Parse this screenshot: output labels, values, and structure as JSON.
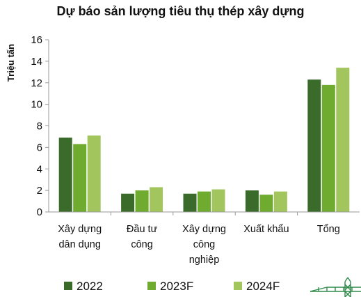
{
  "chart_data": {
    "type": "bar",
    "title": "Dự báo sản lượng tiêu thụ thép xây dựng",
    "ylabel": "Triệu tấn",
    "xlabel": "",
    "ylim": [
      0,
      16
    ],
    "yticks": [
      0,
      2,
      4,
      6,
      8,
      10,
      12,
      14,
      16
    ],
    "grid": false,
    "legend_position": "bottom",
    "categories": [
      [
        "Xây dựng",
        "dân dụng"
      ],
      [
        "Đầu tư",
        "công"
      ],
      [
        "Xây dựng",
        "công",
        "nghiệp"
      ],
      [
        "Xuất khẩu"
      ],
      [
        "Tổng"
      ]
    ],
    "series": [
      {
        "name": "2022",
        "color": "#3a6b2a",
        "values": [
          6.9,
          1.7,
          1.7,
          2.0,
          12.3
        ]
      },
      {
        "name": "2023F",
        "color": "#6eab2f",
        "values": [
          6.3,
          2.0,
          1.9,
          1.6,
          11.8
        ]
      },
      {
        "name": "2024F",
        "color": "#a3c55e",
        "values": [
          7.1,
          2.3,
          2.1,
          1.9,
          13.4
        ]
      }
    ]
  },
  "decoration": {
    "icon": "construction-crane-icon",
    "color": "#2f8a4a"
  }
}
